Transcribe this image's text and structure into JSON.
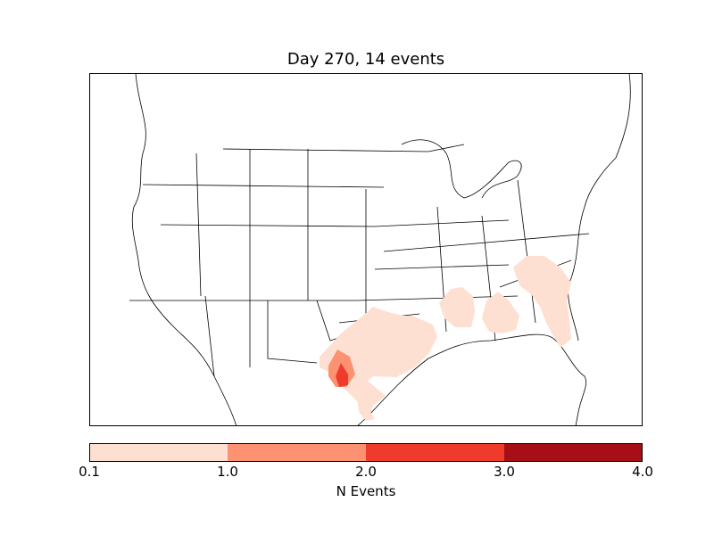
{
  "title": "Day 270, 14 events",
  "colorbar": {
    "label": "N Events",
    "ticks": [
      "0.1",
      "1.0",
      "2.0",
      "3.0",
      "4.0"
    ],
    "bin_colors": [
      "#fee0d2",
      "#fc9272",
      "#ef3b2c",
      "#a50f15"
    ]
  },
  "colors": {
    "level_1": "#fee0d2",
    "level_2": "#fc9272",
    "level_3": "#ef3b2c",
    "border": "#000000"
  }
}
